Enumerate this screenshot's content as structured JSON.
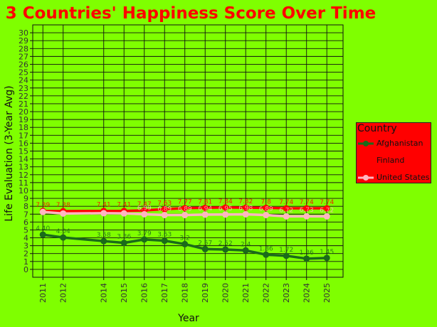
{
  "chart_data": {
    "type": "line",
    "title": "3 Countries' Happiness Score Over Time",
    "xlabel": "Year",
    "ylabel": "Life Evaluation (3-Year Avg)",
    "ylim": [
      -1,
      31
    ],
    "yticks": [
      0,
      1,
      2,
      3,
      4,
      5,
      6,
      7,
      8,
      9,
      10,
      11,
      12,
      13,
      14,
      15,
      16,
      17,
      18,
      19,
      20,
      21,
      22,
      23,
      24,
      25,
      26,
      27,
      28,
      29,
      30
    ],
    "xlim": [
      2010.5,
      2025.8
    ],
    "xticks": [
      2011,
      2012,
      2014,
      2015,
      2016,
      2017,
      2018,
      2019,
      2020,
      2021,
      2022,
      2023,
      2024,
      2025
    ],
    "grid": true,
    "legend": {
      "title": "Country",
      "placement": "right"
    },
    "series": [
      {
        "name": "Afghanistan",
        "color": "#1a6b1a",
        "x": [
          2011,
          2012,
          2014,
          2015,
          2016,
          2017,
          2018,
          2019,
          2020,
          2021,
          2022,
          2023,
          2024,
          2025
        ],
        "values": [
          4.4,
          4.04,
          3.58,
          3.36,
          3.79,
          3.63,
          3.2,
          2.57,
          2.52,
          2.4,
          1.86,
          1.72,
          1.36,
          1.45
        ],
        "labels": [
          "4.40",
          "4.04",
          "3.58",
          "3.36",
          "3.79",
          "3.63",
          "3.2",
          "2.57",
          "2.52",
          "2.4",
          "1.86",
          "1.72",
          "1.36",
          "1.45"
        ]
      },
      {
        "name": "Finland",
        "color": "#ff0000",
        "x": [
          2011,
          2012,
          2014,
          2015,
          2016,
          2017,
          2018,
          2019,
          2020,
          2021,
          2022,
          2023,
          2024,
          2025
        ],
        "values": [
          7.39,
          7.38,
          7.41,
          7.41,
          7.47,
          7.63,
          7.77,
          7.81,
          7.84,
          7.82,
          7.8,
          7.74,
          7.74,
          7.74
        ],
        "labels": [
          "7.39",
          "7.38",
          "7.41",
          "7.41",
          "7.47",
          "7.63",
          "7.77",
          "7.81",
          "7.84",
          "7.82",
          "7.8",
          "7.74",
          "7.74",
          "7.74"
        ]
      },
      {
        "name": "United States",
        "color": "#ffb6c1",
        "x": [
          2011,
          2012,
          2014,
          2015,
          2016,
          2017,
          2018,
          2019,
          2020,
          2021,
          2022,
          2023,
          2024,
          2025
        ],
        "values": [
          7.28,
          7.08,
          7.12,
          7.1,
          6.99,
          6.89,
          6.89,
          6.94,
          6.95,
          6.98,
          6.89,
          6.72,
          6.73,
          6.72
        ],
        "labels": [
          "",
          "",
          "",
          "",
          "6.99",
          "6.89",
          "6.89",
          "6.94",
          "6.95",
          "6.98",
          "6.89",
          "6.72",
          "6.73",
          "6.72"
        ]
      }
    ]
  }
}
